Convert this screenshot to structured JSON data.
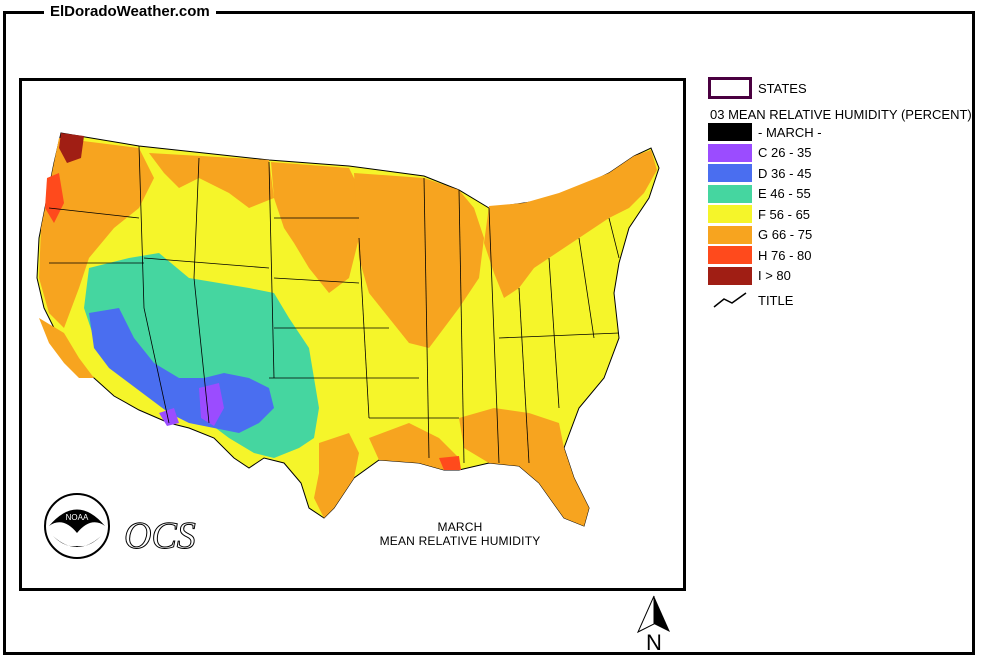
{
  "site": {
    "title": "ElDoradoWeather.com"
  },
  "legend": {
    "states_label": "STATES",
    "heading": "03 MEAN RELATIVE HUMIDITY (PERCENT)",
    "items": [
      {
        "label": "- MARCH -",
        "color": "#000000"
      },
      {
        "label": "C 26 - 35",
        "color": "#9b4cff"
      },
      {
        "label": "D 36 - 45",
        "color": "#4a6ef0"
      },
      {
        "label": "E 46 - 55",
        "color": "#45d6a0"
      },
      {
        "label": "F 56 - 65",
        "color": "#f5f52a"
      },
      {
        "label": "G 66 - 75",
        "color": "#f7a41f"
      },
      {
        "label": "H 76 - 80",
        "color": "#ff4a1c"
      },
      {
        "label": "I > 80",
        "color": "#a01e14"
      }
    ],
    "title_label": "TITLE"
  },
  "map": {
    "caption_line1": "MARCH",
    "caption_line2": "MEAN  RELATIVE HUMIDITY",
    "ocs_logo_text": "OCS",
    "noaa_logo_text": "NOAA",
    "north_label": "N"
  }
}
